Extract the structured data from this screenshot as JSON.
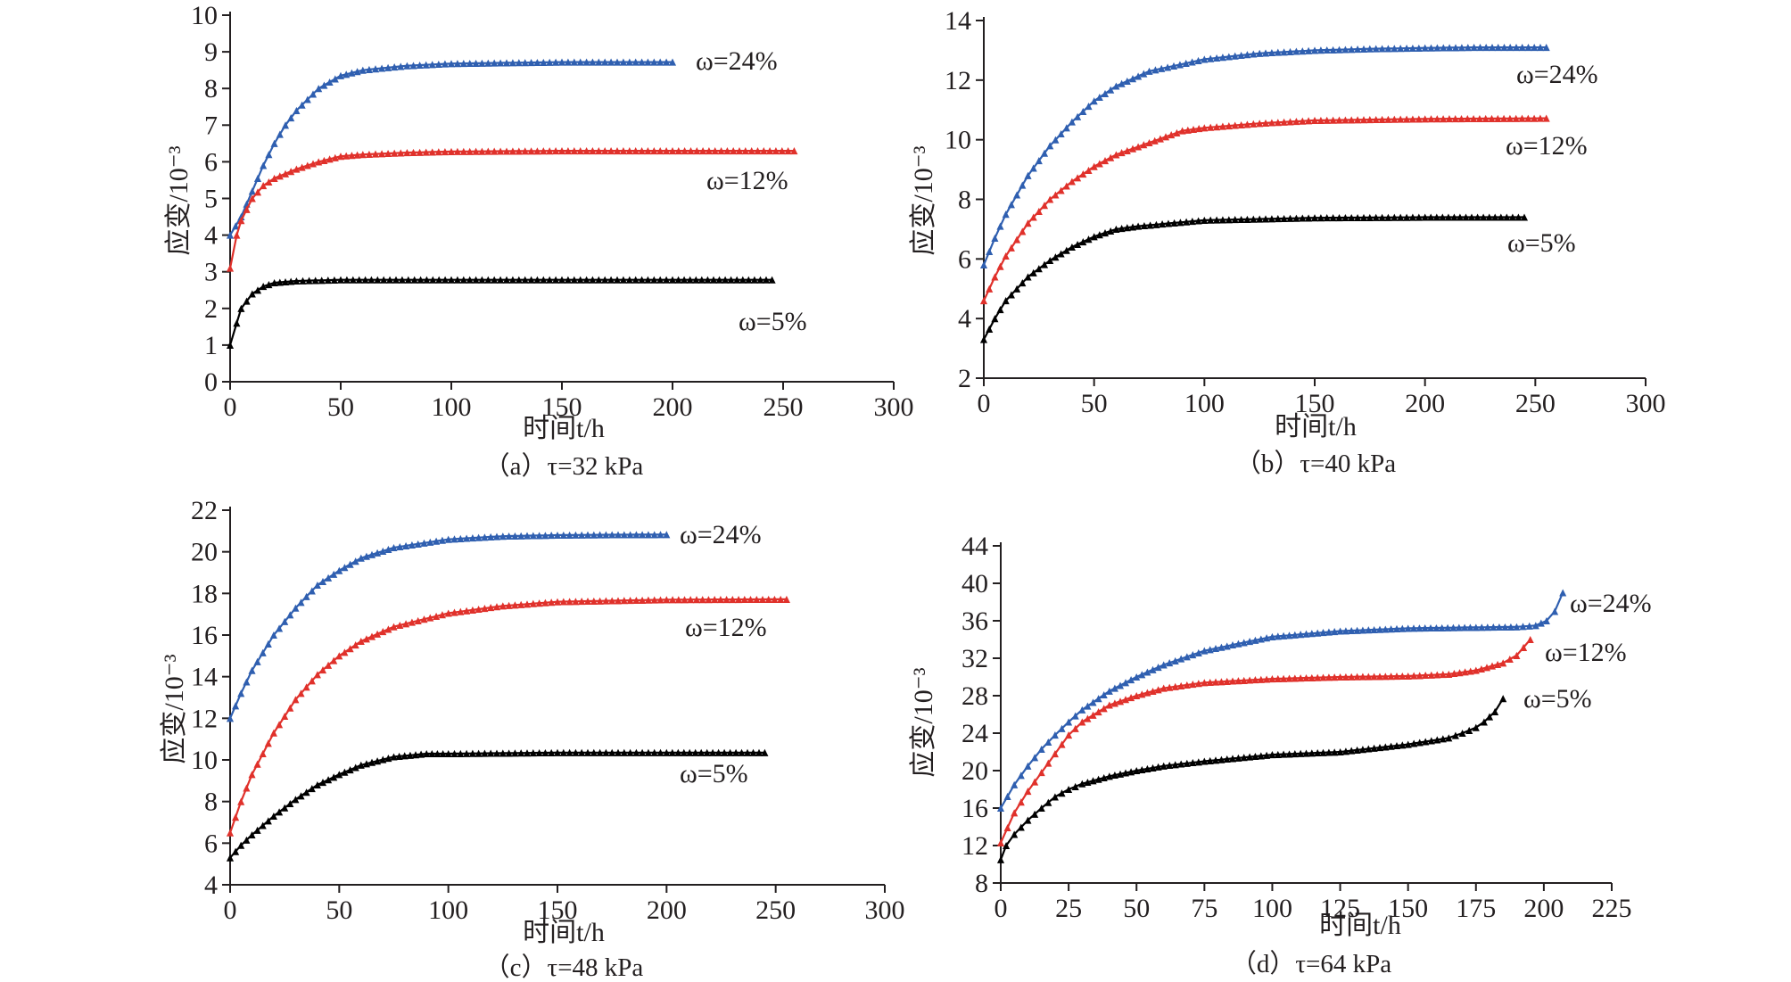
{
  "chart_data": [
    {
      "type": "line",
      "caption": "（a）τ=32 kPa",
      "xlabel": "时间t/h",
      "ylabel": "应变/10⁻³",
      "xlim": [
        0,
        300
      ],
      "ylim": [
        0,
        10
      ],
      "xticks": [
        "0",
        "50",
        "100",
        "150",
        "200",
        "250",
        "300"
      ],
      "yticks": [
        "0",
        "1",
        "2",
        "3",
        "4",
        "5",
        "6",
        "7",
        "8",
        "9",
        "10"
      ],
      "series": [
        {
          "name": "ω=24%",
          "color": "#2f5fb0",
          "x": [
            0,
            5,
            10,
            15,
            20,
            25,
            30,
            40,
            50,
            60,
            80,
            100,
            125,
            150,
            175,
            200
          ],
          "values": [
            4.0,
            4.5,
            5.2,
            5.9,
            6.5,
            7.0,
            7.4,
            8.0,
            8.35,
            8.5,
            8.62,
            8.68,
            8.7,
            8.72,
            8.72,
            8.72
          ]
        },
        {
          "name": "ω=12%",
          "color": "#e0312b",
          "x": [
            0,
            3,
            5,
            10,
            15,
            20,
            30,
            40,
            50,
            60,
            80,
            100,
            150,
            200,
            255
          ],
          "values": [
            3.1,
            4.0,
            4.4,
            5.0,
            5.35,
            5.55,
            5.8,
            6.0,
            6.15,
            6.2,
            6.25,
            6.28,
            6.3,
            6.3,
            6.3
          ]
        },
        {
          "name": "ω=5%",
          "color": "#000000",
          "x": [
            0,
            3,
            5,
            10,
            15,
            20,
            30,
            50,
            100,
            150,
            200,
            245
          ],
          "values": [
            1.0,
            1.6,
            2.0,
            2.4,
            2.6,
            2.7,
            2.75,
            2.78,
            2.78,
            2.78,
            2.78,
            2.78
          ]
        }
      ]
    },
    {
      "type": "line",
      "caption": "（b）τ=40 kPa",
      "xlabel": "时间t/h",
      "ylabel": "应变/10⁻³",
      "xlim": [
        0,
        300
      ],
      "ylim": [
        2,
        14
      ],
      "xticks": [
        "0",
        "50",
        "100",
        "150",
        "200",
        "250",
        "300"
      ],
      "yticks": [
        "2",
        "4",
        "6",
        "8",
        "10",
        "12",
        "14"
      ],
      "series": [
        {
          "name": "ω=24%",
          "color": "#2f5fb0",
          "x": [
            0,
            5,
            10,
            20,
            30,
            40,
            50,
            60,
            75,
            100,
            125,
            150,
            175,
            200,
            225,
            255
          ],
          "values": [
            5.8,
            6.7,
            7.5,
            8.8,
            9.8,
            10.6,
            11.3,
            11.8,
            12.3,
            12.7,
            12.9,
            13.0,
            13.05,
            13.08,
            13.1,
            13.1
          ]
        },
        {
          "name": "ω=12%",
          "color": "#e0312b",
          "x": [
            0,
            5,
            10,
            20,
            30,
            40,
            50,
            60,
            75,
            90,
            100,
            125,
            150,
            200,
            255
          ],
          "values": [
            4.6,
            5.4,
            6.1,
            7.2,
            8.0,
            8.6,
            9.1,
            9.5,
            9.9,
            10.3,
            10.4,
            10.55,
            10.65,
            10.7,
            10.72
          ]
        },
        {
          "name": "ω=5%",
          "color": "#000000",
          "x": [
            0,
            5,
            10,
            20,
            30,
            40,
            50,
            60,
            70,
            100,
            150,
            200,
            245
          ],
          "values": [
            3.3,
            4.0,
            4.6,
            5.4,
            5.95,
            6.4,
            6.75,
            7.0,
            7.1,
            7.3,
            7.38,
            7.4,
            7.4
          ]
        }
      ]
    },
    {
      "type": "line",
      "caption": "（c）τ=48 kPa",
      "xlabel": "时间t/h",
      "ylabel": "应变/10⁻³",
      "xlim": [
        0,
        300
      ],
      "ylim": [
        4,
        22
      ],
      "xticks": [
        "0",
        "50",
        "100",
        "150",
        "200",
        "250",
        "300"
      ],
      "yticks": [
        "4",
        "6",
        "8",
        "10",
        "12",
        "14",
        "16",
        "18",
        "20",
        "22"
      ],
      "series": [
        {
          "name": "ω=24%",
          "color": "#2f5fb0",
          "x": [
            0,
            5,
            10,
            20,
            30,
            40,
            50,
            60,
            75,
            100,
            125,
            150,
            175,
            200
          ],
          "values": [
            12.0,
            13.2,
            14.3,
            16.0,
            17.3,
            18.4,
            19.1,
            19.7,
            20.2,
            20.6,
            20.75,
            20.8,
            20.82,
            20.83
          ]
        },
        {
          "name": "ω=12%",
          "color": "#e0312b",
          "x": [
            0,
            5,
            10,
            20,
            30,
            40,
            50,
            60,
            75,
            100,
            125,
            150,
            200,
            255
          ],
          "values": [
            6.5,
            8.0,
            9.3,
            11.3,
            12.9,
            14.1,
            15.0,
            15.7,
            16.4,
            17.05,
            17.4,
            17.6,
            17.7,
            17.72
          ]
        },
        {
          "name": "ω=5%",
          "color": "#000000",
          "x": [
            0,
            5,
            10,
            20,
            30,
            40,
            50,
            60,
            75,
            90,
            100,
            150,
            200,
            245
          ],
          "values": [
            5.3,
            5.9,
            6.4,
            7.3,
            8.1,
            8.8,
            9.3,
            9.75,
            10.15,
            10.3,
            10.3,
            10.35,
            10.35,
            10.35
          ]
        }
      ]
    },
    {
      "type": "line",
      "caption": "（d）τ=64 kPa",
      "xlabel": "时间t/h",
      "ylabel": "应变/10⁻³",
      "xlim": [
        0,
        225
      ],
      "ylim": [
        8,
        44
      ],
      "xticks": [
        "0",
        "25",
        "50",
        "75",
        "100",
        "125",
        "150",
        "175",
        "200",
        "225"
      ],
      "yticks": [
        "8",
        "12",
        "16",
        "20",
        "24",
        "28",
        "32",
        "36",
        "40",
        "44"
      ],
      "series": [
        {
          "name": "ω=24%",
          "color": "#2f5fb0",
          "x": [
            0,
            5,
            10,
            15,
            20,
            25,
            30,
            40,
            50,
            60,
            75,
            100,
            125,
            150,
            175,
            190,
            197,
            201,
            204,
            207
          ],
          "values": [
            16.0,
            18.5,
            20.5,
            22.3,
            23.8,
            25.2,
            26.5,
            28.5,
            30.0,
            31.3,
            32.8,
            34.3,
            34.9,
            35.2,
            35.3,
            35.35,
            35.5,
            36.0,
            37.0,
            39.0
          ]
        },
        {
          "name": "ω=12%",
          "color": "#e0312b",
          "x": [
            0,
            5,
            10,
            15,
            20,
            25,
            30,
            40,
            50,
            60,
            75,
            100,
            125,
            150,
            165,
            175,
            185,
            190,
            195
          ],
          "values": [
            12.3,
            15.5,
            17.8,
            19.8,
            21.8,
            23.8,
            25.2,
            27.0,
            28.0,
            28.8,
            29.4,
            29.8,
            30.0,
            30.1,
            30.3,
            30.7,
            31.5,
            32.3,
            34.0
          ]
        },
        {
          "name": "ω=5%",
          "color": "#000000",
          "x": [
            0,
            2,
            5,
            10,
            15,
            20,
            25,
            30,
            40,
            50,
            60,
            75,
            100,
            125,
            150,
            165,
            170,
            175,
            178,
            182,
            185
          ],
          "values": [
            10.5,
            12.0,
            13.2,
            14.7,
            16.0,
            17.2,
            18.0,
            18.6,
            19.4,
            20.0,
            20.5,
            21.0,
            21.7,
            22.0,
            22.8,
            23.5,
            24.0,
            24.6,
            25.2,
            26.3,
            27.7
          ]
        }
      ]
    }
  ]
}
